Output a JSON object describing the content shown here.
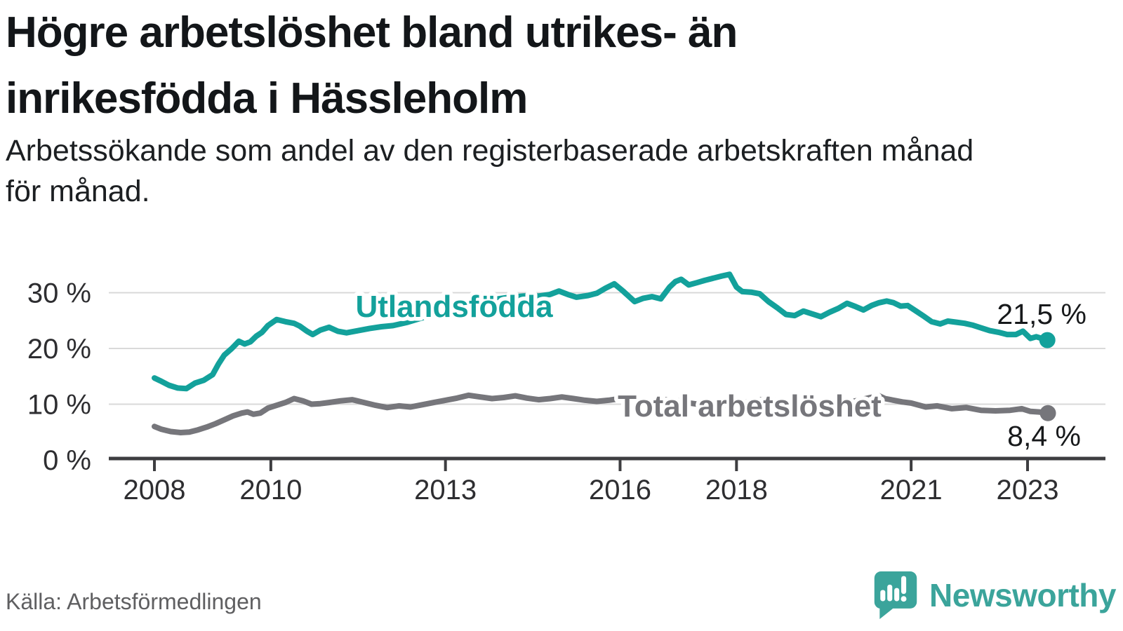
{
  "header": {
    "title_lines": [
      "Högre arbetslöshet bland utrikes- än",
      "inrikesfödda i Hässleholm"
    ],
    "subtitle_lines": [
      "Arbetssökande som andel av den registerbaserade arbetskraften månad",
      "för månad."
    ]
  },
  "footer": {
    "source": "Källa: Arbetsförmedlingen",
    "brand": "Newsworthy",
    "brand_color": "#3ba49b"
  },
  "chart_data": {
    "type": "line",
    "unit": "%",
    "grid": true,
    "xlim": [
      2007.2,
      2024.0
    ],
    "ylim": [
      0,
      35
    ],
    "x_ticks": [
      {
        "year": 2008,
        "label": "2008"
      },
      {
        "year": 2010,
        "label": "2010"
      },
      {
        "year": 2013,
        "label": "2013"
      },
      {
        "year": 2016,
        "label": "2016"
      },
      {
        "year": 2018,
        "label": "2018"
      },
      {
        "year": 2021,
        "label": "2021"
      },
      {
        "year": 2023,
        "label": "2023"
      }
    ],
    "y_ticks": [
      {
        "value": 0,
        "label": "0 %"
      },
      {
        "value": 10,
        "label": "10 %"
      },
      {
        "value": 20,
        "label": "20 %"
      },
      {
        "value": 30,
        "label": "30 %"
      }
    ],
    "series": [
      {
        "name": "Utlandsfödda",
        "color": "#13a19b",
        "end_value": 21.5,
        "end_value_label": "21,5 %",
        "points": [
          [
            2008.0,
            14.7
          ],
          [
            2008.1,
            14.2
          ],
          [
            2008.25,
            13.4
          ],
          [
            2008.4,
            12.9
          ],
          [
            2008.55,
            12.8
          ],
          [
            2008.7,
            13.8
          ],
          [
            2008.85,
            14.3
          ],
          [
            2009.0,
            15.3
          ],
          [
            2009.1,
            17.2
          ],
          [
            2009.2,
            18.8
          ],
          [
            2009.33,
            20.0
          ],
          [
            2009.45,
            21.3
          ],
          [
            2009.55,
            20.8
          ],
          [
            2009.65,
            21.2
          ],
          [
            2009.75,
            22.2
          ],
          [
            2009.85,
            22.9
          ],
          [
            2009.95,
            24.1
          ],
          [
            2010.1,
            25.2
          ],
          [
            2010.25,
            24.8
          ],
          [
            2010.4,
            24.5
          ],
          [
            2010.5,
            24.0
          ],
          [
            2010.62,
            23.1
          ],
          [
            2010.72,
            22.5
          ],
          [
            2010.85,
            23.3
          ],
          [
            2011.0,
            23.8
          ],
          [
            2011.15,
            23.1
          ],
          [
            2011.3,
            22.8
          ],
          [
            2011.5,
            23.2
          ],
          [
            2011.7,
            23.6
          ],
          [
            2011.9,
            23.9
          ],
          [
            2012.1,
            24.1
          ],
          [
            2012.35,
            24.7
          ],
          [
            2012.6,
            25.5
          ],
          [
            2012.85,
            26.3
          ],
          [
            2013.1,
            27.0
          ],
          [
            2013.35,
            27.7
          ],
          [
            2013.6,
            28.3
          ],
          [
            2013.85,
            28.8
          ],
          [
            2014.1,
            29.2
          ],
          [
            2014.35,
            29.4
          ],
          [
            2014.6,
            29.4
          ],
          [
            2014.8,
            29.7
          ],
          [
            2014.95,
            30.3
          ],
          [
            2015.1,
            29.7
          ],
          [
            2015.25,
            29.2
          ],
          [
            2015.45,
            29.5
          ],
          [
            2015.6,
            29.9
          ],
          [
            2015.75,
            30.8
          ],
          [
            2015.9,
            31.6
          ],
          [
            2016.05,
            30.3
          ],
          [
            2016.25,
            28.4
          ],
          [
            2016.4,
            29.0
          ],
          [
            2016.55,
            29.3
          ],
          [
            2016.7,
            28.9
          ],
          [
            2016.85,
            31.0
          ],
          [
            2016.95,
            32.0
          ],
          [
            2017.05,
            32.4
          ],
          [
            2017.18,
            31.4
          ],
          [
            2017.32,
            31.8
          ],
          [
            2017.45,
            32.2
          ],
          [
            2017.6,
            32.6
          ],
          [
            2017.75,
            33.0
          ],
          [
            2017.88,
            33.3
          ],
          [
            2018.0,
            31.0
          ],
          [
            2018.1,
            30.2
          ],
          [
            2018.25,
            30.1
          ],
          [
            2018.4,
            29.8
          ],
          [
            2018.55,
            28.4
          ],
          [
            2018.7,
            27.3
          ],
          [
            2018.85,
            26.1
          ],
          [
            2019.0,
            25.9
          ],
          [
            2019.15,
            26.7
          ],
          [
            2019.3,
            26.2
          ],
          [
            2019.45,
            25.7
          ],
          [
            2019.6,
            26.5
          ],
          [
            2019.75,
            27.2
          ],
          [
            2019.9,
            28.1
          ],
          [
            2020.05,
            27.5
          ],
          [
            2020.18,
            26.9
          ],
          [
            2020.32,
            27.7
          ],
          [
            2020.45,
            28.2
          ],
          [
            2020.58,
            28.5
          ],
          [
            2020.7,
            28.2
          ],
          [
            2020.82,
            27.6
          ],
          [
            2020.94,
            27.7
          ],
          [
            2021.1,
            26.6
          ],
          [
            2021.23,
            25.7
          ],
          [
            2021.35,
            24.8
          ],
          [
            2021.5,
            24.4
          ],
          [
            2021.63,
            24.9
          ],
          [
            2021.78,
            24.7
          ],
          [
            2021.92,
            24.5
          ],
          [
            2022.05,
            24.2
          ],
          [
            2022.2,
            23.7
          ],
          [
            2022.35,
            23.2
          ],
          [
            2022.5,
            22.9
          ],
          [
            2022.65,
            22.5
          ],
          [
            2022.8,
            22.5
          ],
          [
            2022.92,
            23.1
          ],
          [
            2023.05,
            21.8
          ],
          [
            2023.15,
            22.1
          ],
          [
            2023.34,
            21.5
          ]
        ]
      },
      {
        "name": "Total arbetslöshet",
        "color": "#76767b",
        "end_value": 8.4,
        "end_value_label": "8,4 %",
        "points": [
          [
            2008.0,
            6.0
          ],
          [
            2008.12,
            5.5
          ],
          [
            2008.28,
            5.1
          ],
          [
            2008.45,
            4.9
          ],
          [
            2008.6,
            5.0
          ],
          [
            2008.75,
            5.4
          ],
          [
            2008.9,
            5.9
          ],
          [
            2009.05,
            6.5
          ],
          [
            2009.2,
            7.2
          ],
          [
            2009.35,
            7.9
          ],
          [
            2009.5,
            8.4
          ],
          [
            2009.6,
            8.6
          ],
          [
            2009.7,
            8.2
          ],
          [
            2009.82,
            8.4
          ],
          [
            2009.95,
            9.3
          ],
          [
            2010.1,
            9.8
          ],
          [
            2010.25,
            10.3
          ],
          [
            2010.4,
            11.0
          ],
          [
            2010.55,
            10.6
          ],
          [
            2010.7,
            10.0
          ],
          [
            2010.85,
            10.1
          ],
          [
            2011.0,
            10.3
          ],
          [
            2011.2,
            10.6
          ],
          [
            2011.4,
            10.8
          ],
          [
            2011.6,
            10.3
          ],
          [
            2011.8,
            9.8
          ],
          [
            2012.0,
            9.4
          ],
          [
            2012.2,
            9.7
          ],
          [
            2012.4,
            9.5
          ],
          [
            2012.6,
            9.9
          ],
          [
            2012.8,
            10.3
          ],
          [
            2013.0,
            10.7
          ],
          [
            2013.2,
            11.1
          ],
          [
            2013.4,
            11.6
          ],
          [
            2013.6,
            11.3
          ],
          [
            2013.8,
            11.0
          ],
          [
            2014.0,
            11.2
          ],
          [
            2014.2,
            11.5
          ],
          [
            2014.4,
            11.1
          ],
          [
            2014.6,
            10.8
          ],
          [
            2014.8,
            11.0
          ],
          [
            2015.0,
            11.3
          ],
          [
            2015.2,
            11.0
          ],
          [
            2015.4,
            10.7
          ],
          [
            2015.6,
            10.5
          ],
          [
            2015.8,
            10.7
          ],
          [
            2016.0,
            11.0
          ],
          [
            2016.2,
            10.6
          ],
          [
            2016.4,
            10.2
          ],
          [
            2016.6,
            10.4
          ],
          [
            2016.8,
            10.8
          ],
          [
            2017.0,
            10.6
          ],
          [
            2017.2,
            10.2
          ],
          [
            2017.4,
            9.9
          ],
          [
            2017.6,
            9.6
          ],
          [
            2017.8,
            9.8
          ],
          [
            2018.0,
            10.1
          ],
          [
            2018.2,
            10.4
          ],
          [
            2018.35,
            10.7
          ],
          [
            2018.5,
            10.9
          ],
          [
            2018.7,
            10.6
          ],
          [
            2018.9,
            10.3
          ],
          [
            2019.1,
            10.1
          ],
          [
            2019.3,
            9.9
          ],
          [
            2019.5,
            9.8
          ],
          [
            2019.7,
            10.0
          ],
          [
            2019.9,
            10.3
          ],
          [
            2020.1,
            10.7
          ],
          [
            2020.3,
            11.2
          ],
          [
            2020.45,
            11.5
          ],
          [
            2020.55,
            11.0
          ],
          [
            2020.7,
            10.7
          ],
          [
            2020.85,
            10.4
          ],
          [
            2021.0,
            10.2
          ],
          [
            2021.25,
            9.5
          ],
          [
            2021.45,
            9.7
          ],
          [
            2021.7,
            9.2
          ],
          [
            2021.95,
            9.4
          ],
          [
            2022.2,
            8.9
          ],
          [
            2022.45,
            8.8
          ],
          [
            2022.7,
            8.9
          ],
          [
            2022.9,
            9.2
          ],
          [
            2023.05,
            8.7
          ],
          [
            2023.2,
            8.6
          ],
          [
            2023.35,
            8.4
          ]
        ]
      }
    ]
  }
}
